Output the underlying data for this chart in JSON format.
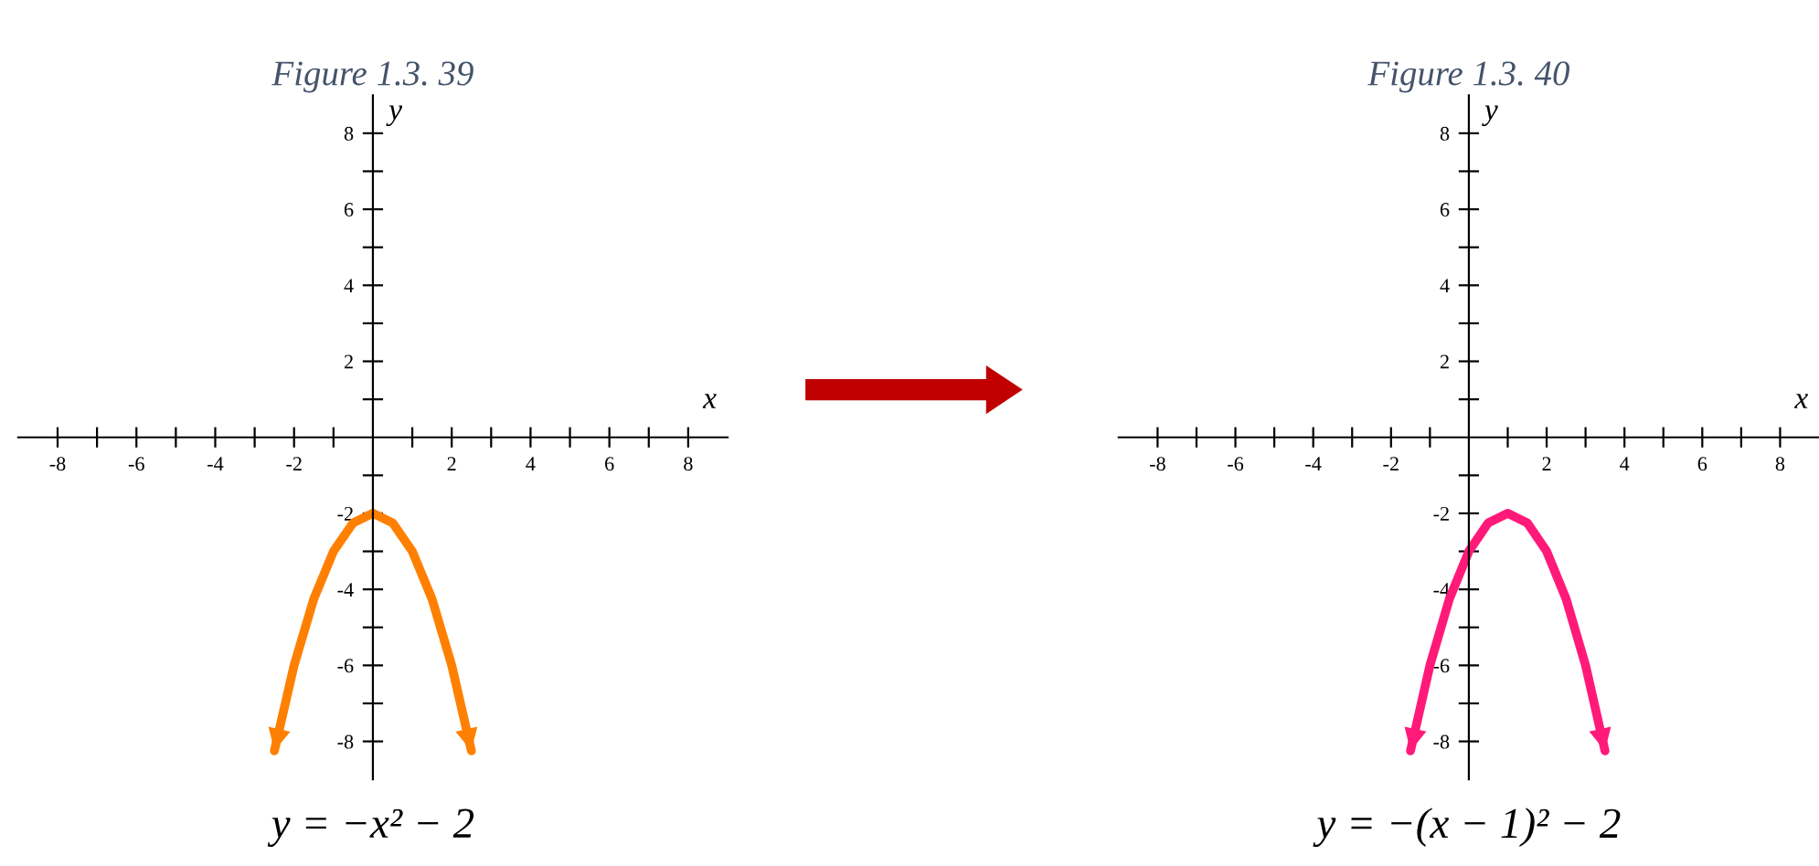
{
  "chart_data": [
    {
      "type": "line",
      "title": "Figure 1.3. 39",
      "xlabel": "x",
      "ylabel": "y",
      "annotations": [
        "y = −x² − 2"
      ],
      "x": [
        -2.5,
        -2,
        -1.5,
        -1,
        -0.5,
        0,
        0.5,
        1,
        1.5,
        2,
        2.5
      ],
      "series": [
        {
          "color": "#ff8000",
          "values": [
            -8.25,
            -6,
            -4.25,
            -3,
            -2.25,
            -2,
            -2.25,
            -3,
            -4.25,
            -6,
            -8.25
          ]
        }
      ],
      "xlim": [
        -9,
        9
      ],
      "ylim": [
        -9,
        9
      ],
      "xticks": [
        -8,
        {
          "value": -7,
          "label": null
        },
        -6,
        {
          "value": -5,
          "label": null
        },
        -4,
        {
          "value": -3,
          "label": null
        },
        -2,
        {
          "value": -1,
          "label": null
        },
        {
          "value": 1,
          "label": null
        },
        2,
        {
          "value": 3,
          "label": null
        },
        4,
        {
          "value": 5,
          "label": null
        },
        6,
        {
          "value": 7,
          "label": null
        },
        8
      ],
      "yticks": [
        -8,
        {
          "value": -7,
          "label": null
        },
        -6,
        {
          "value": -5,
          "label": null
        },
        -4,
        {
          "value": -3,
          "label": null
        },
        -2,
        {
          "value": -1,
          "label": null
        },
        {
          "value": 1,
          "label": null
        },
        2,
        {
          "value": 3,
          "label": null
        },
        4,
        {
          "value": 5,
          "label": null
        },
        6,
        {
          "value": 7,
          "label": null
        },
        8
      ],
      "grid": false,
      "marker": "none",
      "line_style": "solid"
    },
    {
      "type": "line",
      "title": "Figure 1.3. 40",
      "xlabel": "x",
      "ylabel": "y",
      "annotations": [
        "y = −(x − 1)² − 2"
      ],
      "x": [
        -1.5,
        -1,
        -0.5,
        0,
        0.5,
        1,
        1.5,
        2,
        2.5,
        3,
        3.5
      ],
      "series": [
        {
          "color": "#ff1a7a",
          "values": [
            -8.25,
            -6,
            -4.25,
            -3,
            -2.25,
            -2,
            -2.25,
            -3,
            -4.25,
            -6,
            -8.25
          ]
        }
      ],
      "xlim": [
        -9,
        9
      ],
      "ylim": [
        -9,
        9
      ],
      "xticks": [
        -8,
        {
          "value": -7,
          "label": null
        },
        -6,
        {
          "value": -5,
          "label": null
        },
        -4,
        {
          "value": -3,
          "label": null
        },
        -2,
        {
          "value": -1,
          "label": null
        },
        {
          "value": 1,
          "label": null
        },
        2,
        {
          "value": 3,
          "label": null
        },
        4,
        {
          "value": 5,
          "label": null
        },
        6,
        {
          "value": 7,
          "label": null
        },
        8
      ],
      "yticks": [
        -8,
        {
          "value": -7,
          "label": null
        },
        -6,
        {
          "value": -5,
          "label": null
        },
        -4,
        {
          "value": -3,
          "label": null
        },
        -2,
        {
          "value": -1,
          "label": null
        },
        {
          "value": 1,
          "label": null
        },
        2,
        {
          "value": 3,
          "label": null
        },
        4,
        {
          "value": 5,
          "label": null
        },
        6,
        {
          "value": 7,
          "label": null
        },
        8
      ],
      "grid": false,
      "marker": "none",
      "line_style": "solid"
    }
  ]
}
